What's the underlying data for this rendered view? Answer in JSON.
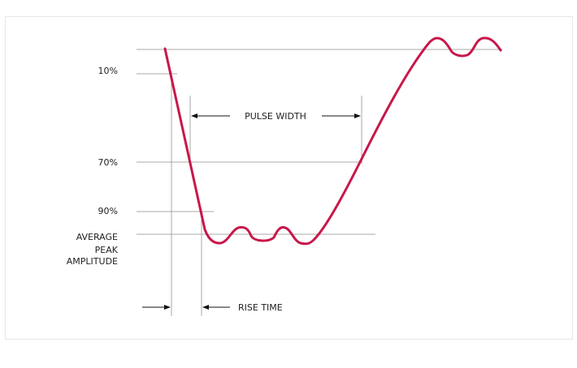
{
  "labels": {
    "level_10": "10%",
    "level_70": "70%",
    "level_90": "90%",
    "avg_line1": "AVERAGE",
    "avg_line2": "PEAK",
    "avg_line3": "AMPLITUDE",
    "pulse_width": "PULSE WIDTH",
    "rise_time": "RISE TIME"
  },
  "colors": {
    "waveform": "#c8174a",
    "guide": "#aaaaaa",
    "frame": "#e6e6e6",
    "text": "#222222",
    "arrow": "#111111"
  }
}
